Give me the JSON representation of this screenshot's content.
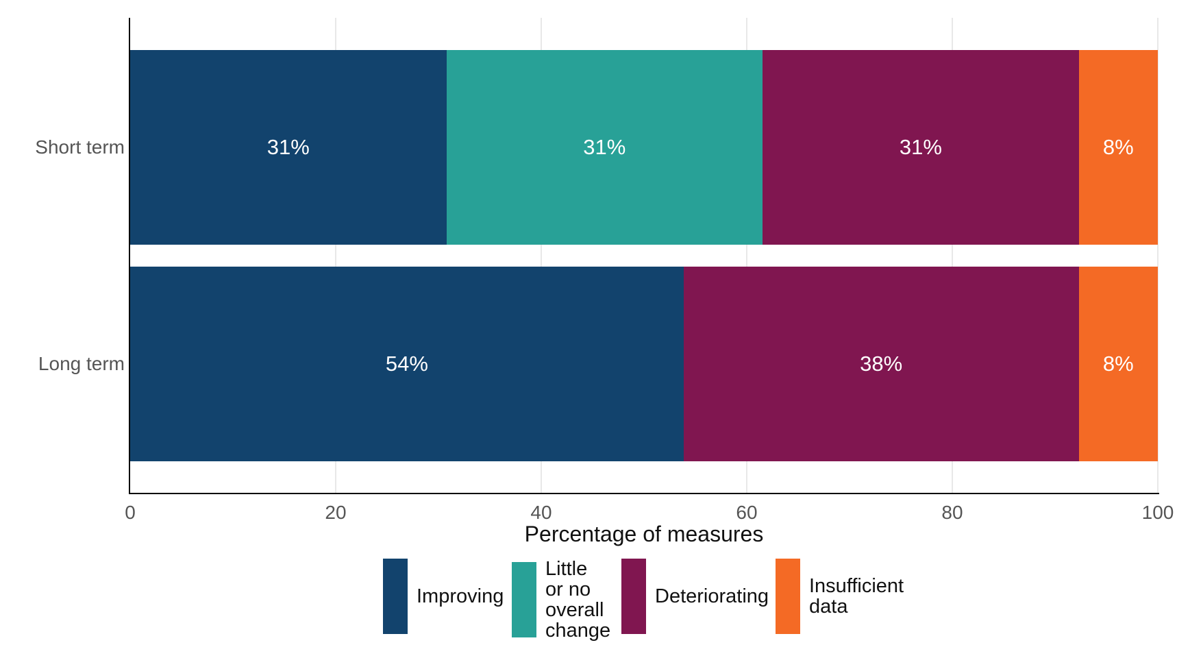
{
  "chart_data": {
    "type": "bar",
    "orientation": "horizontal",
    "stacked": true,
    "title": "",
    "xlabel": "Percentage of measures",
    "ylabel": "",
    "xlim": [
      0,
      100
    ],
    "x_ticks": [
      0,
      20,
      40,
      60,
      80,
      100
    ],
    "grid": "vertical light gray gridlines",
    "legend_position": "bottom",
    "categories": [
      "Short term",
      "Long term"
    ],
    "series": [
      {
        "name": "Improving",
        "color": "#12436D"
      },
      {
        "name": "Little or no overall change",
        "color": "#28A197"
      },
      {
        "name": "Deteriorating",
        "color": "#801650"
      },
      {
        "name": "Insufficient data",
        "color": "#F46A25"
      }
    ],
    "rows": [
      {
        "category": "Short term",
        "segments": [
          {
            "series": "Improving",
            "value": 31,
            "label": "31%",
            "width_pct": 30.77
          },
          {
            "series": "Little or no overall change",
            "value": 31,
            "label": "31%",
            "width_pct": 30.77
          },
          {
            "series": "Deteriorating",
            "value": 31,
            "label": "31%",
            "width_pct": 30.77
          },
          {
            "series": "Insufficient data",
            "value": 8,
            "label": "8%",
            "width_pct": 7.69
          }
        ]
      },
      {
        "category": "Long term",
        "segments": [
          {
            "series": "Improving",
            "value": 54,
            "label": "54%",
            "width_pct": 53.85
          },
          {
            "series": "Deteriorating",
            "value": 38,
            "label": "38%",
            "width_pct": 38.46
          },
          {
            "series": "Insufficient data",
            "value": 8,
            "label": "8%",
            "width_pct": 7.69
          }
        ]
      }
    ],
    "legend": [
      {
        "label": "Improving",
        "color": "#12436D"
      },
      {
        "label": "Little or no overall change",
        "color": "#28A197"
      },
      {
        "label": "Deteriorating",
        "color": "#801650"
      },
      {
        "label": "Insufficient data",
        "color": "#F46A25"
      }
    ],
    "colors": {
      "axis_line": "#000000",
      "grid_line": "#e8e8e8",
      "tick_label": "#555555",
      "category_label": "#555555",
      "axis_title": "#111111",
      "bar_label": "#ffffff",
      "background": "#ffffff"
    }
  }
}
